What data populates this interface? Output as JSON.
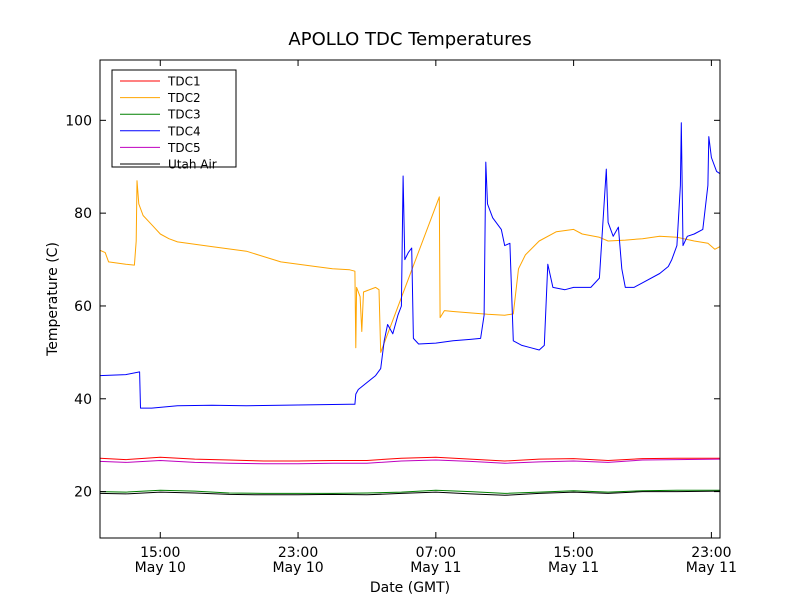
{
  "chart_data": {
    "type": "line",
    "title": "APOLLO TDC Temperatures",
    "xlabel": "Date (GMT)",
    "ylabel": "Temperature (C)",
    "xlim": [
      11.5,
      47.5
    ],
    "ylim": [
      10,
      113
    ],
    "grid": false,
    "legend_position": "top-left",
    "x_ticks": [
      {
        "value": 15,
        "line1": "15:00",
        "line2": "May 10"
      },
      {
        "value": 23,
        "line1": "23:00",
        "line2": "May 10"
      },
      {
        "value": 31,
        "line1": "07:00",
        "line2": "May 11"
      },
      {
        "value": 39,
        "line1": "15:00",
        "line2": "May 11"
      },
      {
        "value": 47,
        "line1": "23:00",
        "line2": "May 11"
      }
    ],
    "y_ticks": [
      20,
      40,
      60,
      80,
      100
    ],
    "series": [
      {
        "name": "TDC1",
        "color": "#ff0000",
        "points": [
          [
            11.5,
            27.2
          ],
          [
            13,
            26.9
          ],
          [
            15,
            27.4
          ],
          [
            17,
            27.0
          ],
          [
            19,
            26.8
          ],
          [
            21,
            26.6
          ],
          [
            23,
            26.6
          ],
          [
            25,
            26.7
          ],
          [
            27,
            26.7
          ],
          [
            29,
            27.2
          ],
          [
            31,
            27.4
          ],
          [
            33,
            27.0
          ],
          [
            35,
            26.6
          ],
          [
            37,
            27.0
          ],
          [
            39,
            27.1
          ],
          [
            41,
            26.7
          ],
          [
            43,
            27.1
          ],
          [
            45,
            27.2
          ],
          [
            47.5,
            27.2
          ]
        ]
      },
      {
        "name": "TDC2",
        "color": "#ffa500",
        "points": [
          [
            11.5,
            72.0
          ],
          [
            11.8,
            71.5
          ],
          [
            12,
            69.5
          ],
          [
            13,
            69.0
          ],
          [
            13.5,
            68.8
          ],
          [
            13.6,
            74
          ],
          [
            13.65,
            87
          ],
          [
            13.75,
            82
          ],
          [
            14,
            79.5
          ],
          [
            14.5,
            77.5
          ],
          [
            15,
            75.5
          ],
          [
            15.5,
            74.5
          ],
          [
            16,
            73.8
          ],
          [
            18,
            72.8
          ],
          [
            20,
            71.8
          ],
          [
            22,
            69.5
          ],
          [
            24,
            68.5
          ],
          [
            25,
            68.0
          ],
          [
            26,
            67.8
          ],
          [
            26.3,
            67.5
          ],
          [
            26.35,
            51.0
          ],
          [
            26.4,
            64.0
          ],
          [
            26.6,
            62.0
          ],
          [
            26.7,
            54.5
          ],
          [
            26.8,
            63.0
          ],
          [
            27.5,
            64.0
          ],
          [
            27.7,
            63.5
          ],
          [
            27.8,
            50.0
          ],
          [
            31.2,
            83.5
          ],
          [
            31.25,
            57.5
          ],
          [
            31.5,
            59.0
          ],
          [
            32,
            58.8
          ],
          [
            33,
            58.5
          ],
          [
            34,
            58.2
          ],
          [
            35,
            58.0
          ],
          [
            35.5,
            58.3
          ],
          [
            35.8,
            68.0
          ],
          [
            36.2,
            71.0
          ],
          [
            37,
            74.0
          ],
          [
            38,
            76.0
          ],
          [
            39,
            76.5
          ],
          [
            39.5,
            75.5
          ],
          [
            40.5,
            74.8
          ],
          [
            41,
            74.0
          ],
          [
            42,
            74.2
          ],
          [
            43,
            74.5
          ],
          [
            44,
            75.0
          ],
          [
            45,
            74.8
          ],
          [
            46,
            74.0
          ],
          [
            46.8,
            73.5
          ],
          [
            47.2,
            72.2
          ],
          [
            47.5,
            72.8
          ]
        ]
      },
      {
        "name": "TDC3",
        "color": "#008000",
        "points": [
          [
            11.5,
            20.0
          ],
          [
            13,
            19.9
          ],
          [
            15,
            20.3
          ],
          [
            17,
            20.1
          ],
          [
            19,
            19.7
          ],
          [
            21,
            19.6
          ],
          [
            23,
            19.6
          ],
          [
            25,
            19.6
          ],
          [
            27,
            19.7
          ],
          [
            29,
            19.9
          ],
          [
            31,
            20.3
          ],
          [
            33,
            20.0
          ],
          [
            35,
            19.6
          ],
          [
            37,
            19.9
          ],
          [
            39,
            20.2
          ],
          [
            41,
            19.9
          ],
          [
            43,
            20.2
          ],
          [
            45,
            20.3
          ],
          [
            47.5,
            20.3
          ]
        ]
      },
      {
        "name": "TDC4",
        "color": "#0000ff",
        "points": [
          [
            11.5,
            45.0
          ],
          [
            13,
            45.2
          ],
          [
            13.8,
            45.8
          ],
          [
            13.85,
            38.0
          ],
          [
            14.5,
            38.0
          ],
          [
            16,
            38.5
          ],
          [
            18,
            38.6
          ],
          [
            20,
            38.5
          ],
          [
            22,
            38.6
          ],
          [
            24,
            38.7
          ],
          [
            26,
            38.8
          ],
          [
            26.3,
            38.8
          ],
          [
            26.35,
            41.0
          ],
          [
            26.5,
            42.0
          ],
          [
            27.5,
            45.0
          ],
          [
            27.8,
            46.5
          ],
          [
            28.0,
            52.5
          ],
          [
            28.2,
            56.0
          ],
          [
            28.5,
            54.0
          ],
          [
            28.8,
            58.0
          ],
          [
            29.0,
            60.0
          ],
          [
            29.1,
            88.0
          ],
          [
            29.2,
            70.0
          ],
          [
            29.4,
            71.5
          ],
          [
            29.6,
            72.5
          ],
          [
            29.7,
            53.0
          ],
          [
            30,
            51.8
          ],
          [
            31,
            52.0
          ],
          [
            32,
            52.5
          ],
          [
            33,
            52.8
          ],
          [
            33.6,
            53.0
          ],
          [
            33.8,
            58.0
          ],
          [
            33.9,
            91.0
          ],
          [
            34.0,
            82.0
          ],
          [
            34.3,
            79.0
          ],
          [
            34.8,
            76.5
          ],
          [
            35.0,
            73.0
          ],
          [
            35.3,
            73.5
          ],
          [
            35.5,
            52.5
          ],
          [
            36,
            51.5
          ],
          [
            36.5,
            51.0
          ],
          [
            37,
            50.5
          ],
          [
            37.3,
            51.5
          ],
          [
            37.5,
            69.0
          ],
          [
            37.8,
            64.0
          ],
          [
            38.5,
            63.5
          ],
          [
            39,
            64.0
          ],
          [
            40,
            64.0
          ],
          [
            40.5,
            66.0
          ],
          [
            40.9,
            89.5
          ],
          [
            41.0,
            78.0
          ],
          [
            41.3,
            75.0
          ],
          [
            41.6,
            77.0
          ],
          [
            41.8,
            68.0
          ],
          [
            42.0,
            64.0
          ],
          [
            42.5,
            64.0
          ],
          [
            43,
            65.0
          ],
          [
            44,
            67.0
          ],
          [
            44.5,
            68.5
          ],
          [
            44.7,
            70.0
          ],
          [
            45.0,
            73.0
          ],
          [
            45.2,
            86.0
          ],
          [
            45.25,
            99.5
          ],
          [
            45.35,
            73.0
          ],
          [
            45.6,
            75.0
          ],
          [
            46,
            75.5
          ],
          [
            46.5,
            76.5
          ],
          [
            46.8,
            86.0
          ],
          [
            46.85,
            96.5
          ],
          [
            47.0,
            92.0
          ],
          [
            47.3,
            89.0
          ],
          [
            47.5,
            88.5
          ]
        ]
      },
      {
        "name": "TDC5",
        "color": "#bf00bf",
        "points": [
          [
            11.5,
            26.5
          ],
          [
            13,
            26.3
          ],
          [
            15,
            26.7
          ],
          [
            17,
            26.3
          ],
          [
            19,
            26.1
          ],
          [
            21,
            26.0
          ],
          [
            23,
            26.0
          ],
          [
            25,
            26.1
          ],
          [
            27,
            26.1
          ],
          [
            29,
            26.6
          ],
          [
            31,
            26.8
          ],
          [
            33,
            26.5
          ],
          [
            35,
            26.1
          ],
          [
            37,
            26.4
          ],
          [
            39,
            26.6
          ],
          [
            41,
            26.3
          ],
          [
            43,
            26.8
          ],
          [
            45,
            26.9
          ],
          [
            47.5,
            27.0
          ]
        ]
      },
      {
        "name": "Utah Air",
        "color": "#000000",
        "points": [
          [
            11.5,
            19.6
          ],
          [
            13,
            19.5
          ],
          [
            15,
            19.9
          ],
          [
            17,
            19.7
          ],
          [
            19,
            19.4
          ],
          [
            21,
            19.3
          ],
          [
            23,
            19.3
          ],
          [
            25,
            19.4
          ],
          [
            27,
            19.3
          ],
          [
            29,
            19.6
          ],
          [
            31,
            19.9
          ],
          [
            33,
            19.5
          ],
          [
            35,
            19.2
          ],
          [
            37,
            19.6
          ],
          [
            39,
            19.9
          ],
          [
            41,
            19.6
          ],
          [
            43,
            20.0
          ],
          [
            45,
            20.0
          ],
          [
            47.5,
            20.1
          ]
        ]
      }
    ]
  }
}
